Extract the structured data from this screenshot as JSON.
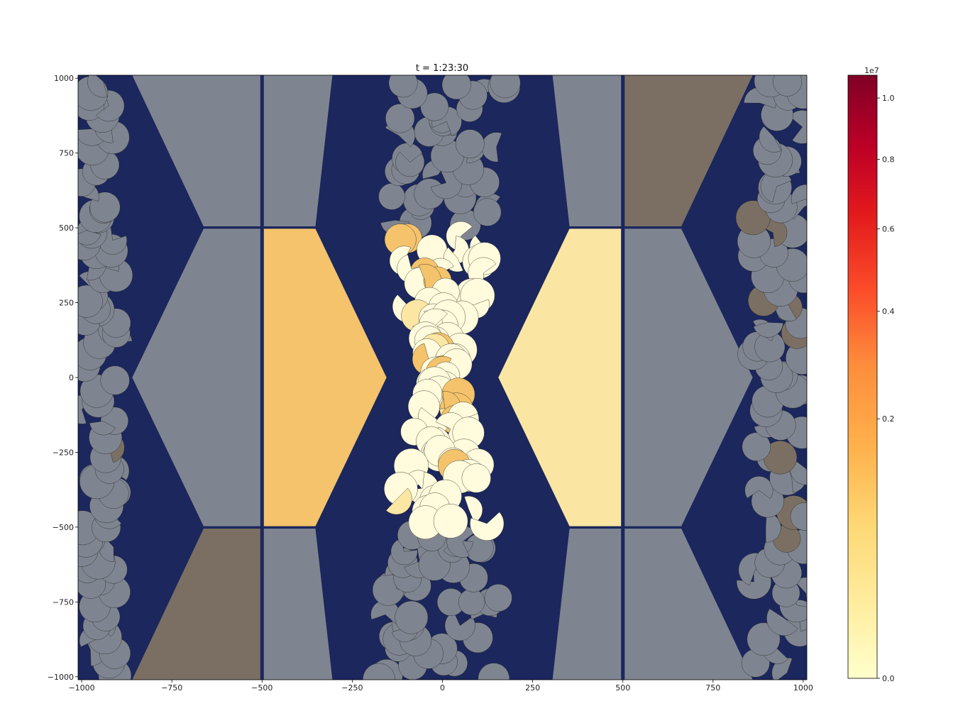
{
  "chart_data": {
    "type": "heatmap",
    "title": "t = 1:23:30",
    "xlabel": "",
    "ylabel": "",
    "xlim": [
      -1010,
      1010
    ],
    "ylim": [
      -1010,
      1010
    ],
    "xticks": [
      -1000,
      -750,
      -500,
      -250,
      0,
      250,
      500,
      750,
      1000
    ],
    "xtick_labels": [
      "−1000",
      "−750",
      "−500",
      "−250",
      "0",
      "250",
      "500",
      "750",
      "1000"
    ],
    "yticks": [
      1000,
      750,
      500,
      250,
      0,
      -250,
      -500,
      -750,
      -1000
    ],
    "ytick_labels": [
      "1000",
      "750",
      "500",
      "250",
      "0",
      "−250",
      "−500",
      "−750",
      "−1000"
    ],
    "colorbar": {
      "multiplier_label": "1e7",
      "range": [
        0,
        10800000
      ],
      "ticks": [
        0,
        2000000,
        4000000,
        6000000,
        8000000,
        10000000
      ],
      "tick_labels": [
        "0.0",
        "0.2",
        "0.4",
        "0.6",
        "0.8",
        "1.0"
      ],
      "colormap": "YlOrRd"
    },
    "background_color": "#1b275d",
    "inactive_color": "#7f8590",
    "panels": [
      {
        "name": "left-gray-1",
        "state": "inactive"
      },
      {
        "name": "left-gray-2",
        "state": "inactive"
      },
      {
        "name": "left-orange",
        "state": "active",
        "color": "#f4c36b"
      },
      {
        "name": "right-yellow",
        "state": "active",
        "color": "#fae6a2"
      },
      {
        "name": "right-gray-1",
        "state": "inactive"
      },
      {
        "name": "right-gray-2",
        "state": "inactive"
      }
    ],
    "floe_colors": {
      "active_light": "#fffbdc",
      "active_mid": "#fbe6a3",
      "active_warm": "#f4c36b",
      "inactive": "#7f8590",
      "inactive_warm": "#7b6f63"
    }
  }
}
